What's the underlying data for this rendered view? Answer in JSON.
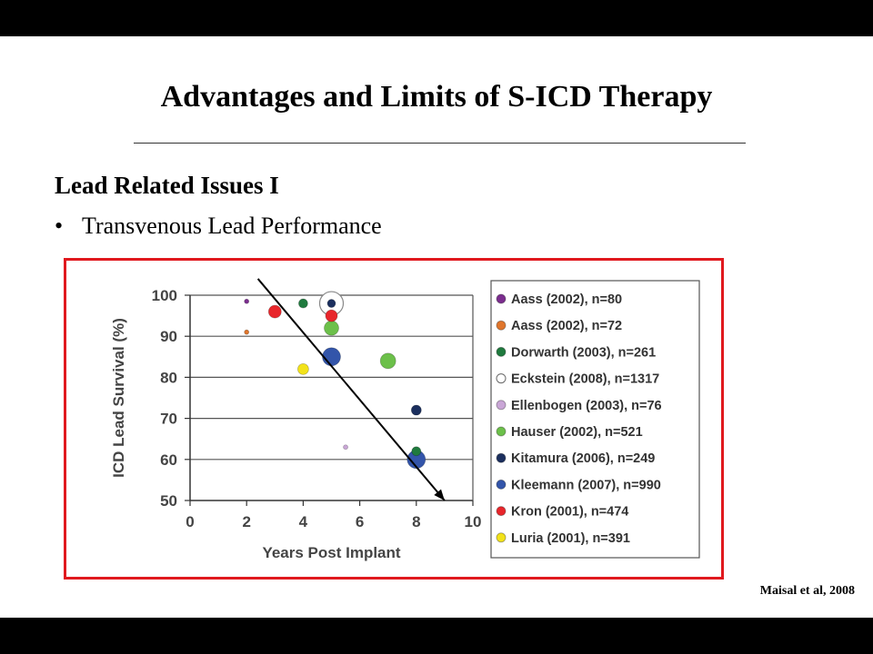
{
  "slide": {
    "title": "Advantages and Limits of S-ICD Therapy",
    "section_heading": "Lead Related Issues I",
    "bullet_symbol": "•",
    "bullet_text": "Transvenous Lead Performance",
    "citation": "Maisal et al, 2008",
    "frame_color": "#e0191e"
  },
  "chart_data": {
    "type": "scatter",
    "title": "",
    "xlabel": "Years Post Implant",
    "ylabel": "ICD Lead Survival (%)",
    "xlim": [
      0,
      10
    ],
    "ylim": [
      50,
      100
    ],
    "xticks": [
      0,
      2,
      4,
      6,
      8,
      10
    ],
    "yticks": [
      50,
      60,
      70,
      80,
      90,
      100
    ],
    "grid": "horizontal",
    "legend_position": "right",
    "series": [
      {
        "name": "Aass (2002), n=80",
        "color": "#7b2d8e",
        "points": [
          [
            2,
            98.5
          ]
        ]
      },
      {
        "name": "Aass (2002), n=72",
        "color": "#e0762c",
        "points": [
          [
            2,
            91
          ]
        ]
      },
      {
        "name": "Dorwarth (2003), n=261",
        "color": "#1f7a3e",
        "points": [
          [
            4,
            98
          ],
          [
            8,
            62
          ]
        ]
      },
      {
        "name": "Eckstein (2008), n=1317",
        "color": "#ffffff",
        "points": [
          [
            5,
            98
          ]
        ]
      },
      {
        "name": "Ellenbogen (2003), n=76",
        "color": "#c9a6d6",
        "points": [
          [
            5.5,
            63
          ]
        ]
      },
      {
        "name": "Hauser (2002), n=521",
        "color": "#6cc04a",
        "points": [
          [
            5,
            92
          ],
          [
            7,
            84
          ]
        ]
      },
      {
        "name": "Kitamura (2006), n=249",
        "color": "#1b2f5e",
        "points": [
          [
            5,
            98
          ],
          [
            8,
            72
          ]
        ]
      },
      {
        "name": "Kleemann (2007), n=990",
        "color": "#3355aa",
        "points": [
          [
            5,
            85
          ],
          [
            8,
            60
          ]
        ]
      },
      {
        "name": "Kron (2001), n=474",
        "color": "#e8262b",
        "points": [
          [
            3,
            96
          ],
          [
            5,
            95
          ]
        ]
      },
      {
        "name": "Luria (2001), n=391",
        "color": "#f2e21a",
        "points": [
          [
            4,
            82
          ]
        ]
      }
    ],
    "trend_arrow": {
      "from": [
        2.4,
        104
      ],
      "to": [
        9,
        50
      ]
    }
  }
}
